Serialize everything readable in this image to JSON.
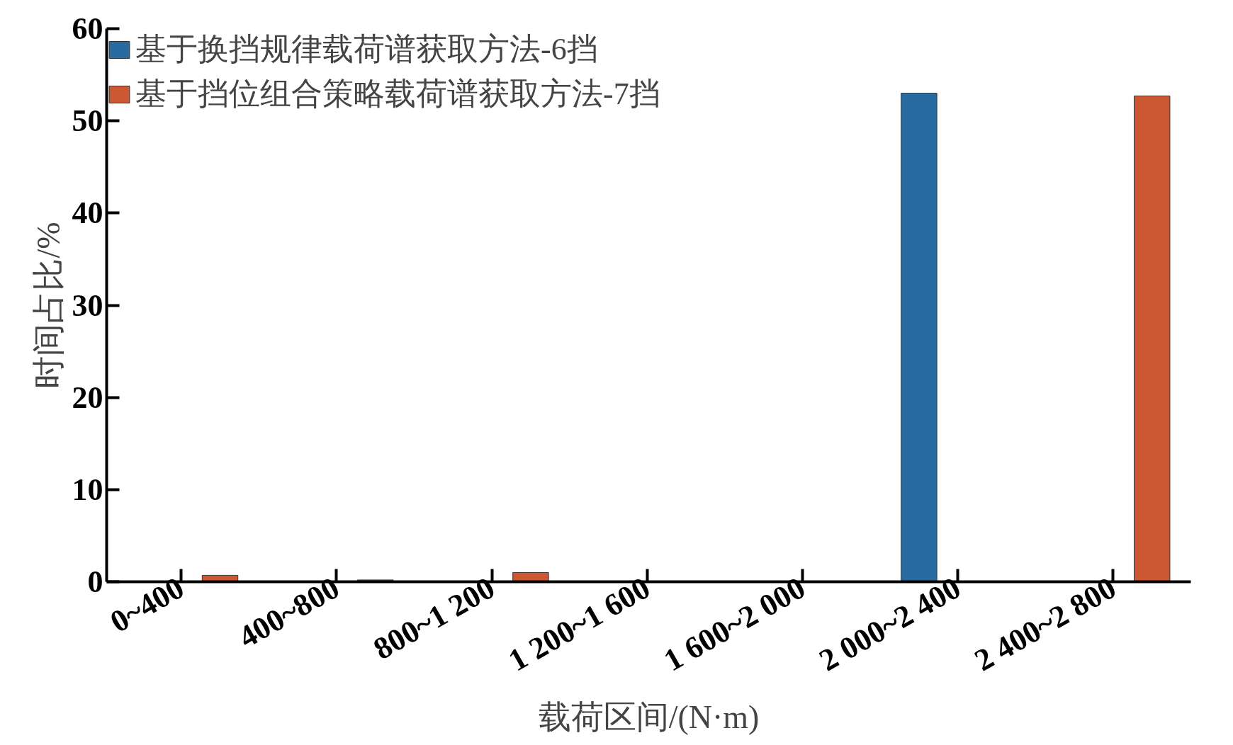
{
  "chart_data": {
    "type": "bar",
    "xlabel": "载荷区间/(N·m)",
    "ylabel": "时间占比/%",
    "categories": [
      "0~400",
      "400~800",
      "800~1 200",
      "1 200~1 600",
      "1 600~2 000",
      "2 000~2 400",
      "2 400~2 800"
    ],
    "series": [
      {
        "name": "基于换挡规律载荷谱获取方法-6挡",
        "color": "#286ba1",
        "values": [
          null,
          null,
          null,
          null,
          null,
          53,
          null
        ]
      },
      {
        "name": "基于挡位组合策略载荷谱获取方法-7挡",
        "color": "#cb5832",
        "values": [
          0.7,
          0.2,
          1.0,
          null,
          null,
          null,
          52.7
        ]
      }
    ],
    "ylim": [
      0,
      60
    ],
    "yticks": [
      0,
      10,
      20,
      30,
      40,
      50,
      60
    ],
    "grid": false,
    "legend": "top left"
  }
}
